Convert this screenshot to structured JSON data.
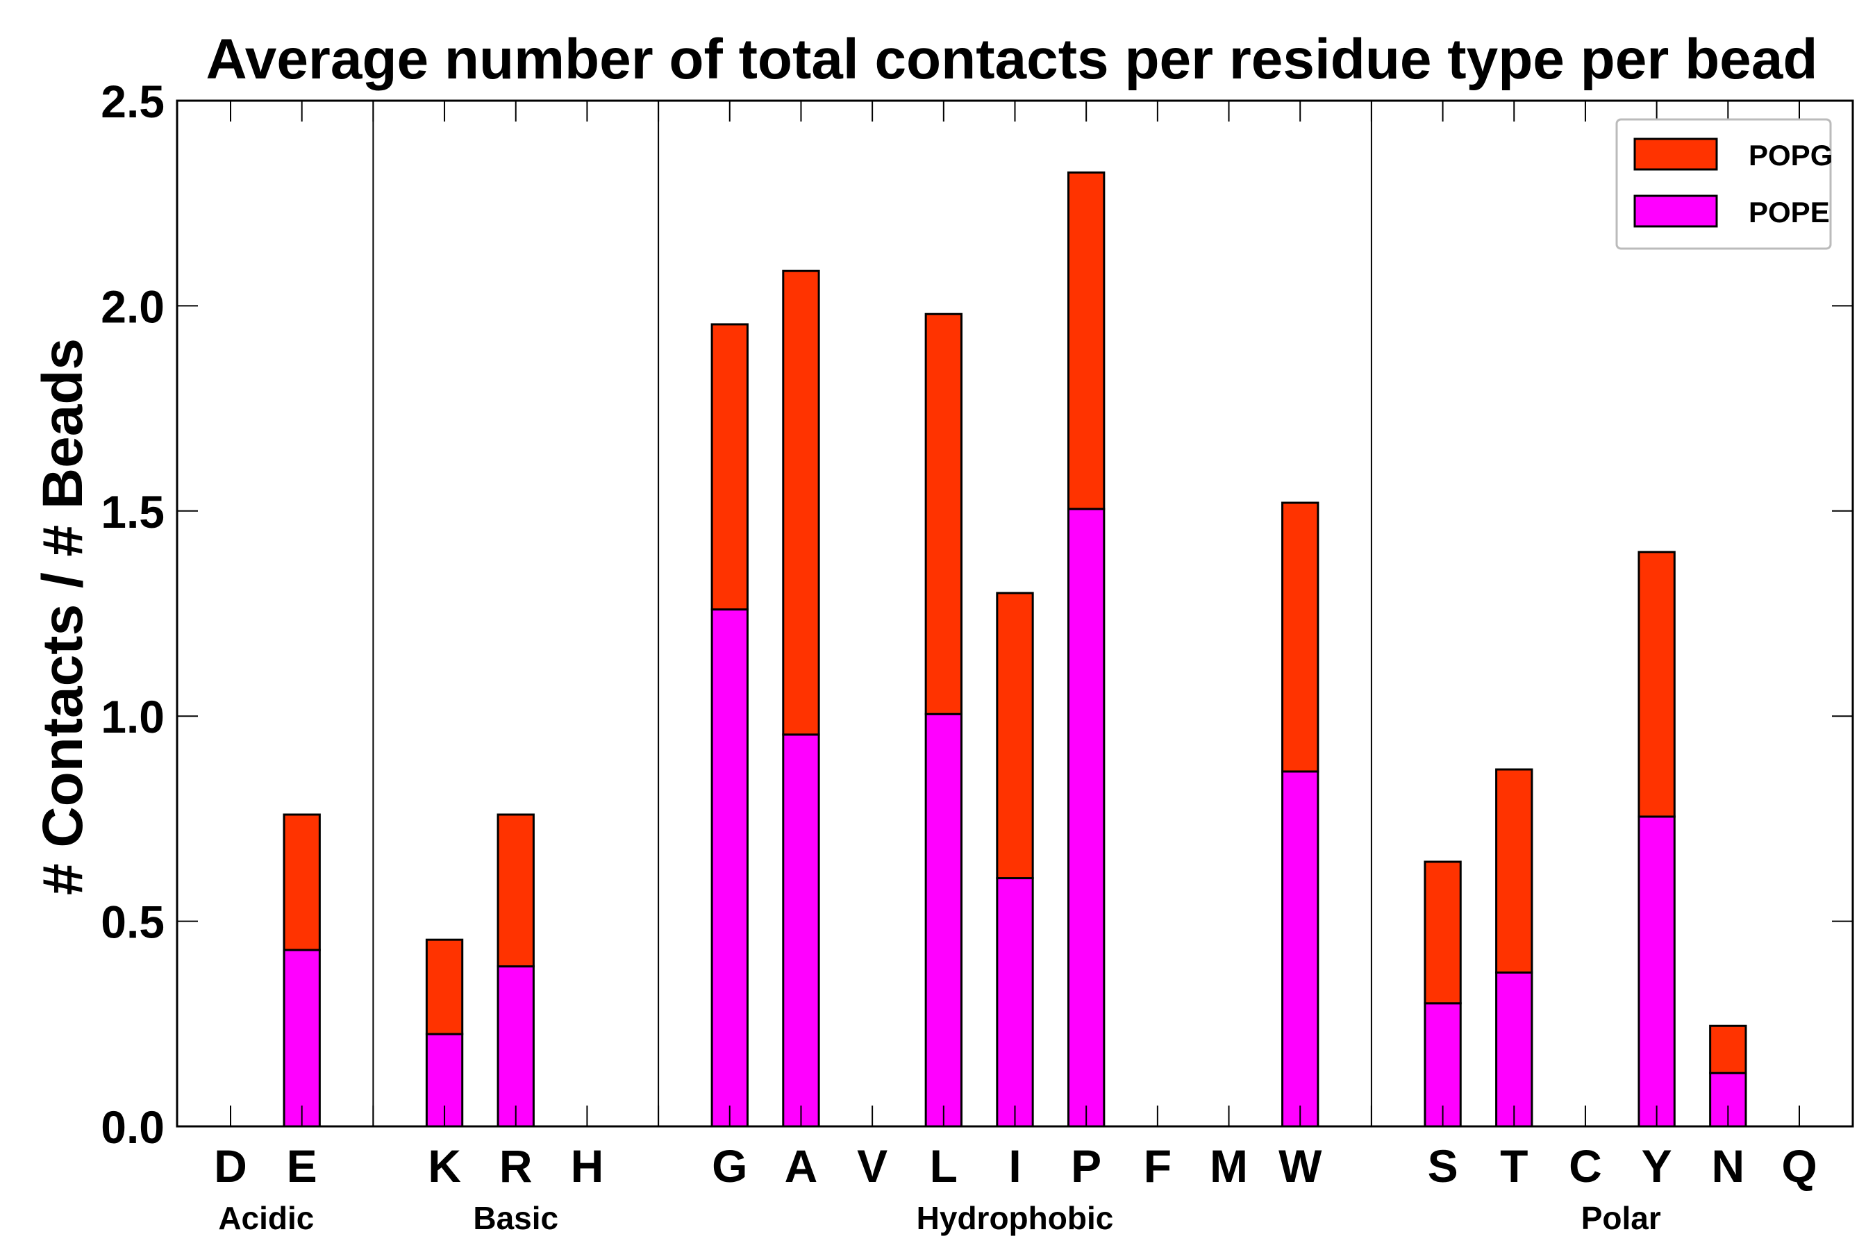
{
  "chart_data": {
    "type": "bar",
    "stacked": true,
    "title": "Average number of total contacts per residue type per bead",
    "xlabel": "",
    "ylabel": "# Contacts / # Beads",
    "ylim": [
      0,
      2.5
    ],
    "yticks": [
      "0.0",
      "0.5",
      "1.0",
      "1.5",
      "2.0",
      "2.5"
    ],
    "categories": [
      "D",
      "E",
      "",
      "K",
      "R",
      "H",
      "",
      "G",
      "A",
      "V",
      "L",
      "I",
      "P",
      "F",
      "M",
      "W",
      "",
      "S",
      "T",
      "C",
      "Y",
      "N",
      "Q"
    ],
    "groups": [
      {
        "label": "Acidic",
        "start": 0,
        "end": 1
      },
      {
        "label": "Basic",
        "start": 3,
        "end": 5
      },
      {
        "label": "Hydrophobic",
        "start": 7,
        "end": 15
      },
      {
        "label": "Polar",
        "start": 17,
        "end": 22
      }
    ],
    "separators_after": [
      2,
      6,
      16
    ],
    "series": [
      {
        "name": "POPE",
        "color": "#ff00ff",
        "values": [
          0,
          0.43,
          0,
          0.225,
          0.39,
          0,
          0,
          1.26,
          0.955,
          0,
          1.005,
          0.605,
          1.505,
          0,
          0,
          0.865,
          0,
          0.3,
          0.375,
          0,
          0.755,
          0.13,
          0
        ]
      },
      {
        "name": "POPG",
        "color": "#ff3300",
        "values": [
          0,
          0.33,
          0,
          0.23,
          0.37,
          0,
          0,
          0.695,
          1.13,
          0,
          0.975,
          0.695,
          0.82,
          0,
          0,
          0.655,
          0,
          0.345,
          0.495,
          0,
          0.645,
          0.115,
          0
        ]
      }
    ],
    "legend": {
      "position": "top-right",
      "entries": [
        "POPG",
        "POPE"
      ]
    }
  }
}
